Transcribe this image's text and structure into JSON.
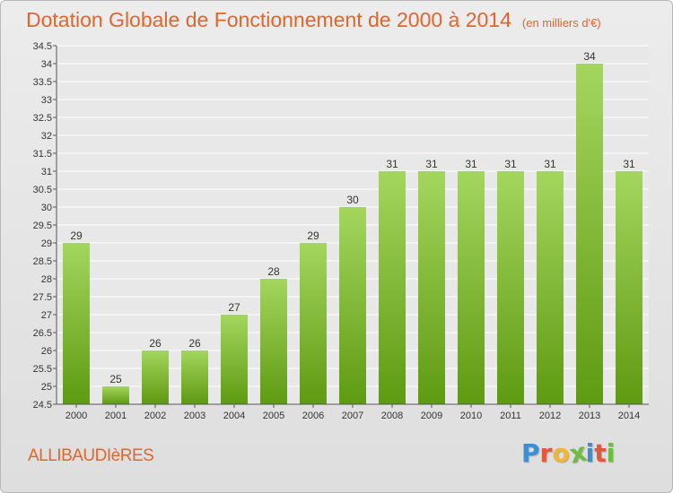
{
  "header": {
    "title": "Dotation Globale de Fonctionnement de 2000 à 2014",
    "subtitle": "(en milliers d'€)"
  },
  "footer": {
    "commune": "ALLIBAUDIèRES",
    "logo_letters": [
      "P",
      "r",
      "o",
      "x",
      "i",
      "t",
      "i"
    ],
    "logo_colors": [
      "#3a8fd6",
      "#e8563a",
      "#f2b632",
      "#6cbf3b",
      "#3a8fd6",
      "#e8563a",
      "#6cbf3b"
    ]
  },
  "colors": {
    "bar_light": "#a4d65e",
    "bar_dark": "#5e9a12",
    "title": "#e0672c",
    "grid": "#ffffff",
    "axis": "#555555"
  },
  "chart_data": {
    "type": "bar",
    "categories": [
      "2000",
      "2001",
      "2002",
      "2003",
      "2004",
      "2005",
      "2006",
      "2007",
      "2008",
      "2009",
      "2010",
      "2011",
      "2012",
      "2013",
      "2014"
    ],
    "values": [
      29,
      25,
      26,
      26,
      27,
      28,
      29,
      30,
      31,
      31,
      31,
      31,
      31,
      34,
      31
    ],
    "data_labels": [
      "29",
      "25",
      "26",
      "26",
      "27",
      "28",
      "29",
      "30",
      "31",
      "31",
      "31",
      "31",
      "31",
      "34",
      "31"
    ],
    "ylim": [
      24.5,
      34.5
    ],
    "y_ticks": [
      "24.5",
      "25",
      "25.5",
      "26",
      "26.5",
      "27",
      "27.5",
      "28",
      "28.5",
      "29",
      "29.5",
      "30",
      "30.5",
      "31",
      "31.5",
      "32",
      "32.5",
      "33",
      "33.5",
      "34",
      "34.5"
    ],
    "grid": true,
    "legend": "none"
  }
}
